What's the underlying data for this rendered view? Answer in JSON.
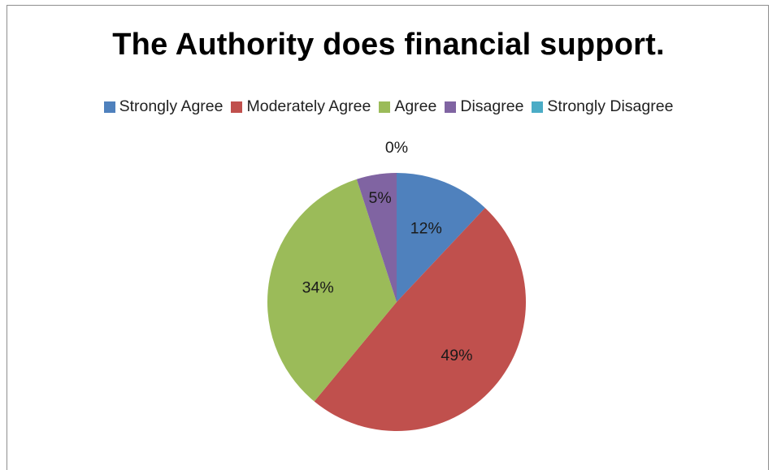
{
  "chart_data": {
    "type": "pie",
    "title": "The Authority does financial support.",
    "legend_position": "top",
    "categories": [
      "Strongly Agree",
      "Moderately Agree",
      "Agree",
      "Disagree",
      "Strongly Disagree"
    ],
    "values": [
      12,
      49,
      34,
      5,
      0
    ],
    "labels": [
      "12%",
      "49%",
      "34%",
      "5%",
      "0%"
    ],
    "colors": [
      "#4f81bd",
      "#c0504d",
      "#9bbb59",
      "#8064a2",
      "#4bacc6"
    ]
  }
}
